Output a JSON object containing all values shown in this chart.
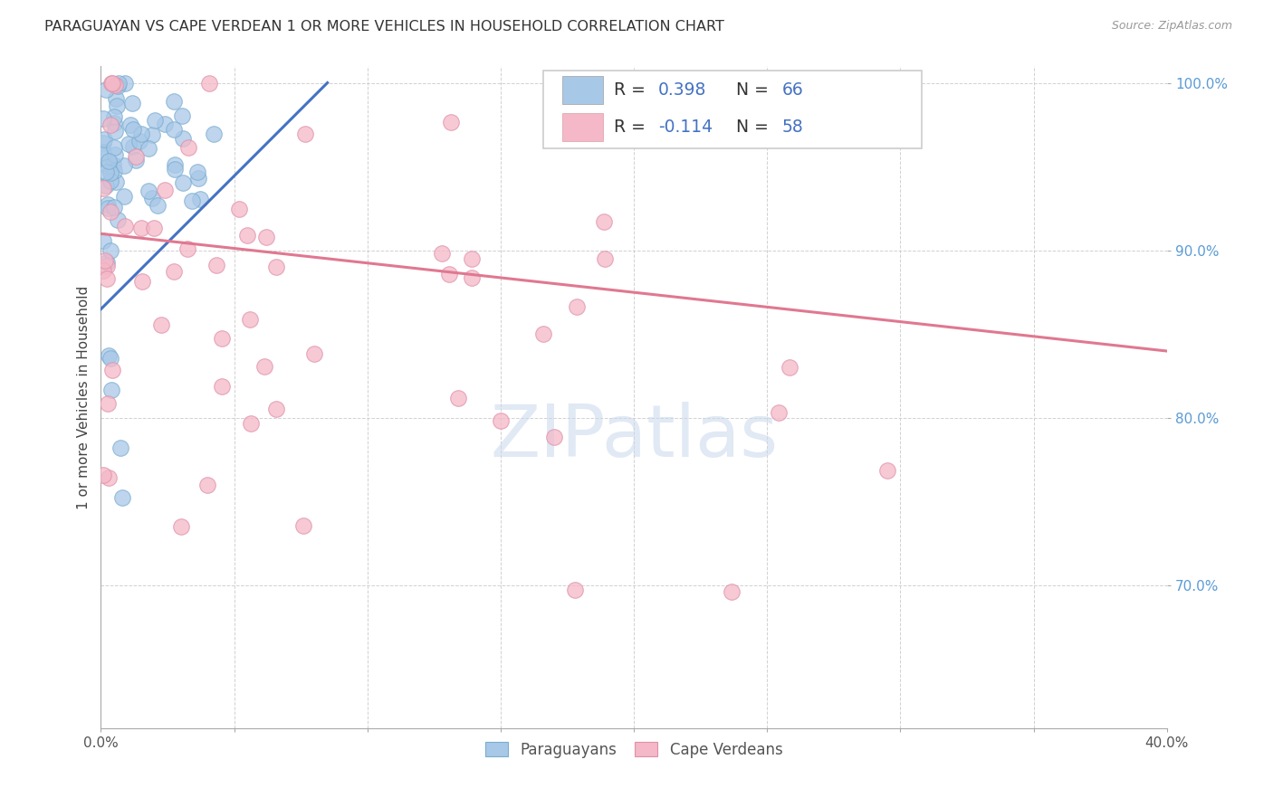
{
  "title": "PARAGUAYAN VS CAPE VERDEAN 1 OR MORE VEHICLES IN HOUSEHOLD CORRELATION CHART",
  "source": "Source: ZipAtlas.com",
  "ylabel": "1 or more Vehicles in Household",
  "watermark": "ZIPatlas",
  "blue_color": "#a8c8e8",
  "pink_color": "#f4b8c8",
  "trend_blue": "#4472c4",
  "trend_pink": "#e07890",
  "right_label_color": "#5b9bd5",
  "legend_text_color": "#4472c4",
  "xmin": 0.0,
  "xmax": 0.4,
  "ymin": 0.615,
  "ymax": 1.01,
  "yticks": [
    0.7,
    0.8,
    0.9,
    1.0
  ],
  "ytick_labels": [
    "70.0%",
    "80.0%",
    "90.0%",
    "100.0%"
  ],
  "xticks": [
    0.0,
    0.05,
    0.1,
    0.15,
    0.2,
    0.25,
    0.3,
    0.35,
    0.4
  ],
  "blue_r": 0.398,
  "blue_n": 66,
  "pink_r": -0.114,
  "pink_n": 58,
  "blue_trend_x0": 0.0,
  "blue_trend_x1": 0.085,
  "blue_trend_y0": 0.865,
  "blue_trend_y1": 1.0,
  "pink_trend_x0": 0.0,
  "pink_trend_x1": 0.4,
  "pink_trend_y0": 0.91,
  "pink_trend_y1": 0.84
}
